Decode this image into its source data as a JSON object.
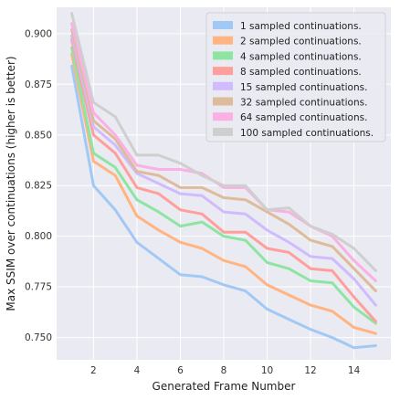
{
  "chart_data": {
    "type": "line",
    "title": "",
    "xlabel": "Generated Frame Number",
    "ylabel": "Max SSIM over continuations (higher is better)",
    "xlim": [
      0.3,
      15.7
    ],
    "ylim": [
      0.739,
      0.913
    ],
    "xticks": [
      2,
      4,
      6,
      8,
      10,
      12,
      14
    ],
    "yticks": [
      0.75,
      0.775,
      0.8,
      0.825,
      0.85,
      0.875,
      0.9
    ],
    "grid": true,
    "legend_position": "top-right",
    "x": [
      1,
      2,
      3,
      4,
      5,
      6,
      7,
      8,
      9,
      10,
      11,
      12,
      13,
      14,
      15
    ],
    "series": [
      {
        "name": "1 sampled continuations.",
        "color": "#a1c9f4",
        "values": [
          0.884,
          0.825,
          0.813,
          0.797,
          0.789,
          0.781,
          0.78,
          0.776,
          0.773,
          0.764,
          0.759,
          0.754,
          0.75,
          0.745,
          0.746
        ]
      },
      {
        "name": "2 sampled continuations.",
        "color": "#ffb482",
        "values": [
          0.89,
          0.837,
          0.83,
          0.81,
          0.803,
          0.797,
          0.794,
          0.788,
          0.785,
          0.776,
          0.771,
          0.766,
          0.763,
          0.755,
          0.752
        ]
      },
      {
        "name": "4 sampled continuations.",
        "color": "#8de5a1",
        "values": [
          0.893,
          0.841,
          0.834,
          0.818,
          0.812,
          0.805,
          0.807,
          0.8,
          0.798,
          0.787,
          0.784,
          0.778,
          0.777,
          0.765,
          0.757
        ]
      },
      {
        "name": "8 sampled continuations.",
        "color": "#ff9f9b",
        "values": [
          0.897,
          0.85,
          0.841,
          0.824,
          0.821,
          0.813,
          0.811,
          0.802,
          0.802,
          0.794,
          0.792,
          0.784,
          0.783,
          0.77,
          0.758
        ]
      },
      {
        "name": "15 sampled continuations.",
        "color": "#d0bbff",
        "values": [
          0.899,
          0.854,
          0.845,
          0.831,
          0.826,
          0.821,
          0.82,
          0.812,
          0.811,
          0.803,
          0.797,
          0.79,
          0.789,
          0.779,
          0.766
        ]
      },
      {
        "name": "32 sampled continuations.",
        "color": "#debb9b",
        "values": [
          0.902,
          0.857,
          0.848,
          0.832,
          0.83,
          0.824,
          0.824,
          0.819,
          0.818,
          0.812,
          0.806,
          0.798,
          0.795,
          0.784,
          0.773
        ]
      },
      {
        "name": "64 sampled continuations.",
        "color": "#fab0e4",
        "values": [
          0.905,
          0.861,
          0.85,
          0.835,
          0.833,
          0.833,
          0.831,
          0.824,
          0.824,
          0.813,
          0.812,
          0.805,
          0.8,
          0.788,
          0.778
        ]
      },
      {
        "name": "100 sampled continuations.",
        "color": "#cfcfcf",
        "values": [
          0.91,
          0.866,
          0.859,
          0.84,
          0.84,
          0.836,
          0.83,
          0.825,
          0.825,
          0.813,
          0.814,
          0.805,
          0.801,
          0.794,
          0.783
        ]
      }
    ]
  }
}
